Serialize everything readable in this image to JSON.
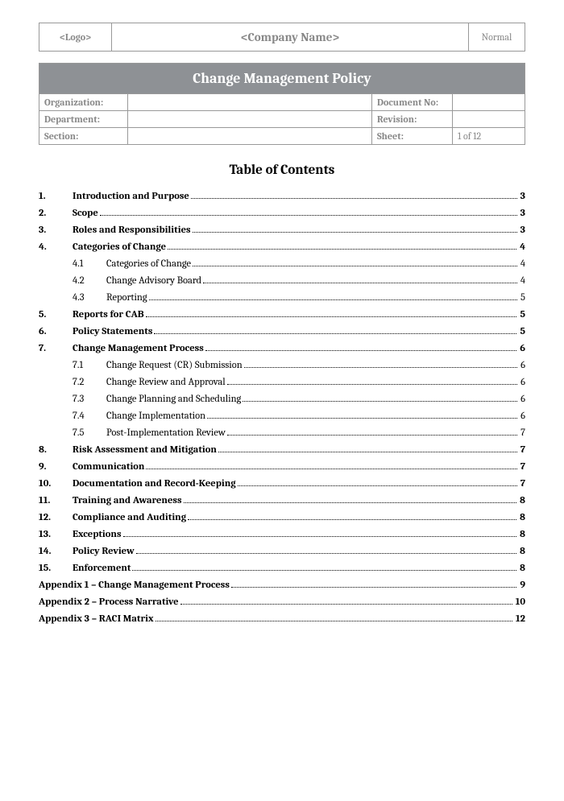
{
  "header": {
    "logo": "<Logo>",
    "company": "<Company Name>",
    "status": "Normal"
  },
  "title": "Change Management Policy",
  "meta": {
    "org_label": "Organization:",
    "org_value": "",
    "doc_label": "Document No:",
    "doc_value": "",
    "dept_label": "Department:",
    "dept_value": "",
    "rev_label": "Revision:",
    "rev_value": "",
    "sect_label": "Section:",
    "sect_value": "",
    "sheet_label": "Sheet:",
    "sheet_value": "1 of 12"
  },
  "toc_title": "Table of Contents",
  "toc": [
    {
      "num": "1.",
      "text": "Introduction and Purpose",
      "page": "3"
    },
    {
      "num": "2.",
      "text": "Scope",
      "page": "3"
    },
    {
      "num": "3.",
      "text": "Roles and Responsibilities",
      "page": "3"
    },
    {
      "num": "4.",
      "text": "Categories of Change",
      "page": "4",
      "subs": [
        {
          "num": "4.1",
          "text": "Categories of Change",
          "page": "4"
        },
        {
          "num": "4.2",
          "text": "Change Advisory Board",
          "page": "4"
        },
        {
          "num": "4.3",
          "text": "Reporting",
          "page": "5"
        }
      ]
    },
    {
      "num": "5.",
      "text": "Reports for CAB",
      "page": "5"
    },
    {
      "num": "6.",
      "text": "Policy Statements",
      "page": "5"
    },
    {
      "num": "7.",
      "text": "Change Management Process",
      "page": "6",
      "subs": [
        {
          "num": "7.1",
          "text": "Change Request (CR) Submission",
          "page": "6"
        },
        {
          "num": "7.2",
          "text": "Change Review and Approval",
          "page": "6"
        },
        {
          "num": "7.3",
          "text": "Change Planning and Scheduling",
          "page": "6"
        },
        {
          "num": "7.4",
          "text": "Change Implementation",
          "page": "6"
        },
        {
          "num": "7.5",
          "text": "Post-Implementation Review",
          "page": "7"
        }
      ]
    },
    {
      "num": "8.",
      "text": "Risk Assessment and Mitigation",
      "page": "7"
    },
    {
      "num": "9.",
      "text": "Communication",
      "page": "7"
    },
    {
      "num": "10.",
      "text": "Documentation and Record-Keeping",
      "page": "7"
    },
    {
      "num": "11.",
      "text": "Training and Awareness",
      "page": "8"
    },
    {
      "num": "12.",
      "text": "Compliance and Auditing",
      "page": "8"
    },
    {
      "num": "13.",
      "text": "Exceptions",
      "page": "8"
    },
    {
      "num": "14.",
      "text": "Policy Review",
      "page": "8"
    },
    {
      "num": "15.",
      "text": "Enforcement",
      "page": "8"
    }
  ],
  "appendices": [
    {
      "text": "Appendix 1 – Change Management Process",
      "page": "9"
    },
    {
      "text": "Appendix 2 – Process Narrative",
      "page": "10"
    },
    {
      "text": "Appendix 3 – RACI Matrix",
      "page": "12"
    }
  ]
}
